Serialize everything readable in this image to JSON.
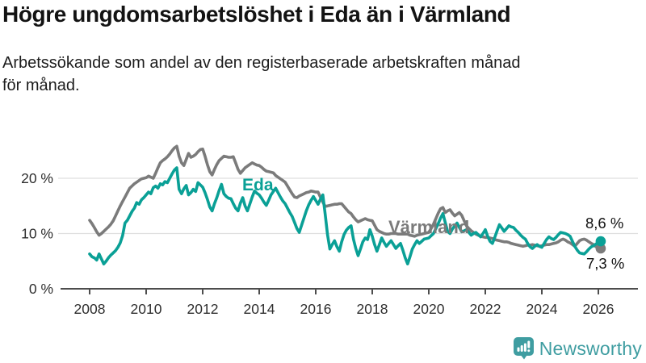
{
  "header": {
    "title": "Högre ungdomsarbetslöshet i Eda än i Värmland",
    "subtitle": "Arbetssökande som andel av den registerbaserade arbetskraften månad\nför månad."
  },
  "chart_data": {
    "type": "line",
    "title": "Högre ungdomsarbetslöshet i Eda än i Värmland",
    "subtitle": "Arbetssökande som andel av den registerbaserade arbetskraften månad för månad.",
    "unit": "%",
    "x_start_year": 2008,
    "x_step_months": 1,
    "x_ticks": [
      2008,
      2010,
      2012,
      2014,
      2016,
      2018,
      2020,
      2022,
      2024,
      2026
    ],
    "y_ticks": [
      {
        "value": 0,
        "label": "0 %"
      },
      {
        "value": 10,
        "label": "10 %"
      },
      {
        "value": 20,
        "label": "20 %"
      }
    ],
    "ylim": [
      0,
      28
    ],
    "xlim": [
      2007.0,
      2027.4
    ],
    "grid": "horizontal",
    "legend": "inline-labels",
    "grid_color": "#dfdfdf",
    "axis_color": "#4d4d4d",
    "series": [
      {
        "name": "Eda",
        "color": "#0aa096",
        "end_label": "8,6 %",
        "end_value": 8.6,
        "values": [
          6.3,
          5.8,
          5.6,
          5.2,
          6.3,
          5.4,
          4.5,
          5.0,
          5.6,
          6.1,
          6.5,
          6.9,
          7.5,
          8.3,
          9.6,
          11.9,
          12.4,
          13.2,
          14.0,
          14.6,
          15.6,
          15.3,
          16.1,
          16.5,
          17.0,
          17.5,
          17.2,
          18.3,
          18.6,
          18.2,
          19.0,
          18.8,
          19.4,
          19.2,
          20.0,
          20.8,
          21.5,
          21.9,
          18.0,
          17.2,
          18.1,
          18.7,
          17.0,
          17.4,
          18.0,
          17.6,
          19.2,
          18.8,
          18.4,
          17.4,
          16.2,
          14.8,
          14.1,
          15.4,
          16.5,
          17.8,
          18.9,
          17.2,
          16.7,
          16.4,
          16.3,
          15.4,
          14.6,
          14.1,
          15.5,
          16.5,
          15.0,
          14.1,
          15.3,
          16.6,
          17.7,
          17.3,
          17.0,
          16.4,
          15.7,
          15.1,
          16.0,
          17.0,
          17.6,
          18.2,
          17.4,
          16.6,
          15.9,
          15.4,
          14.6,
          13.8,
          13.1,
          12.0,
          10.9,
          10.2,
          11.5,
          12.8,
          14.1,
          15.2,
          16.0,
          16.7,
          16.0,
          15.3,
          16.2,
          17.0,
          13.5,
          9.8,
          7.2,
          8.0,
          8.7,
          7.6,
          6.8,
          8.5,
          9.8,
          10.6,
          11.1,
          11.4,
          9.0,
          7.3,
          6.0,
          7.2,
          8.5,
          9.2,
          8.9,
          10.7,
          9.5,
          8.0,
          6.8,
          8.0,
          9.2,
          8.4,
          7.7,
          8.2,
          8.7,
          8.0,
          7.3,
          7.8,
          8.2,
          7.0,
          5.6,
          4.5,
          5.8,
          7.2,
          8.0,
          8.7,
          8.2,
          8.6,
          9.0,
          9.1,
          9.2,
          9.6,
          10.0,
          10.9,
          11.8,
          12.8,
          13.6,
          12.0,
          10.4,
          10.0,
          10.8,
          11.4,
          11.9,
          11.1,
          10.3,
          10.5,
          10.7,
          10.2,
          9.7,
          10.0,
          10.2,
          9.8,
          9.4,
          10.0,
          10.7,
          9.5,
          8.6,
          8.2,
          9.3,
          10.5,
          11.6,
          11.0,
          10.4,
          10.9,
          11.4,
          11.2,
          11.1,
          10.6,
          10.2,
          9.7,
          9.3,
          9.0,
          8.2,
          7.6,
          7.3,
          7.7,
          8.0,
          7.7,
          7.5,
          8.2,
          8.9,
          9.4,
          9.1,
          8.9,
          9.3,
          9.8,
          10.2,
          10.1,
          10.0,
          9.8,
          9.5,
          8.6,
          7.7,
          7.0,
          6.5,
          6.4,
          6.3,
          6.7,
          7.2,
          7.6,
          7.8,
          8.1,
          8.4,
          8.6
        ]
      },
      {
        "name": "Värmland",
        "color": "#7b7b7b",
        "end_label": "7,3 %",
        "end_value": 7.3,
        "values": [
          12.4,
          11.8,
          11.1,
          10.3,
          9.7,
          10.0,
          10.4,
          10.8,
          11.2,
          11.7,
          12.3,
          13.2,
          14.1,
          15.0,
          15.8,
          16.6,
          17.4,
          18.2,
          18.6,
          19.0,
          19.3,
          19.6,
          19.9,
          20.0,
          20.1,
          20.4,
          20.2,
          20.0,
          20.9,
          21.9,
          22.8,
          23.2,
          23.5,
          23.9,
          24.4,
          25.0,
          25.5,
          25.8,
          24.0,
          22.8,
          22.3,
          23.4,
          24.5,
          23.8,
          24.0,
          24.3,
          24.8,
          25.2,
          25.3,
          24.0,
          22.5,
          21.2,
          20.6,
          21.6,
          22.5,
          23.2,
          23.6,
          24.0,
          23.9,
          23.8,
          23.8,
          23.9,
          22.8,
          21.6,
          20.9,
          21.4,
          21.9,
          22.2,
          22.5,
          22.8,
          22.6,
          22.4,
          22.3,
          22.0,
          21.6,
          21.3,
          21.2,
          21.1,
          21.0,
          20.5,
          20.2,
          19.9,
          19.6,
          19.3,
          18.6,
          17.9,
          17.2,
          16.6,
          16.5,
          16.8,
          17.0,
          17.2,
          17.4,
          17.5,
          17.7,
          17.6,
          17.5,
          17.5,
          16.6,
          15.7,
          14.9,
          15.0,
          15.1,
          15.2,
          15.3,
          15.3,
          15.4,
          15.4,
          14.9,
          14.4,
          13.9,
          13.6,
          13.0,
          12.5,
          12.1,
          12.3,
          12.5,
          12.7,
          12.5,
          12.4,
          12.3,
          11.5,
          10.7,
          10.4,
          10.2,
          10.0,
          9.9,
          9.9,
          10.0,
          10.0,
          10.0,
          9.9,
          9.9,
          9.9,
          9.9,
          9.9,
          9.7,
          9.6,
          9.5,
          9.7,
          9.8,
          9.9,
          10.0,
          10.1,
          10.2,
          10.9,
          11.7,
          12.7,
          13.7,
          14.5,
          14.7,
          13.8,
          14.1,
          14.3,
          13.7,
          13.2,
          13.5,
          13.8,
          13.3,
          12.3,
          11.4,
          10.9,
          10.5,
          10.2,
          9.9,
          9.7,
          9.5,
          9.4,
          9.3,
          9.3,
          9.2,
          9.1,
          8.9,
          8.8,
          8.7,
          8.6,
          8.5,
          8.5,
          8.4,
          8.2,
          8.1,
          8.0,
          7.9,
          7.8,
          7.7,
          7.8,
          7.9,
          7.9,
          8.0,
          7.9,
          7.8,
          7.7,
          7.8,
          7.9,
          8.0,
          8.0,
          8.1,
          8.2,
          8.3,
          8.5,
          8.8,
          9.0,
          8.8,
          8.5,
          8.3,
          8.0,
          7.7,
          8.2,
          8.7,
          8.9,
          9.0,
          8.8,
          8.5,
          8.2,
          8.0,
          7.6,
          7.4,
          7.3
        ]
      }
    ]
  },
  "footer": {
    "brand": "Newsworthy",
    "brand_color": "#3f9da1"
  }
}
